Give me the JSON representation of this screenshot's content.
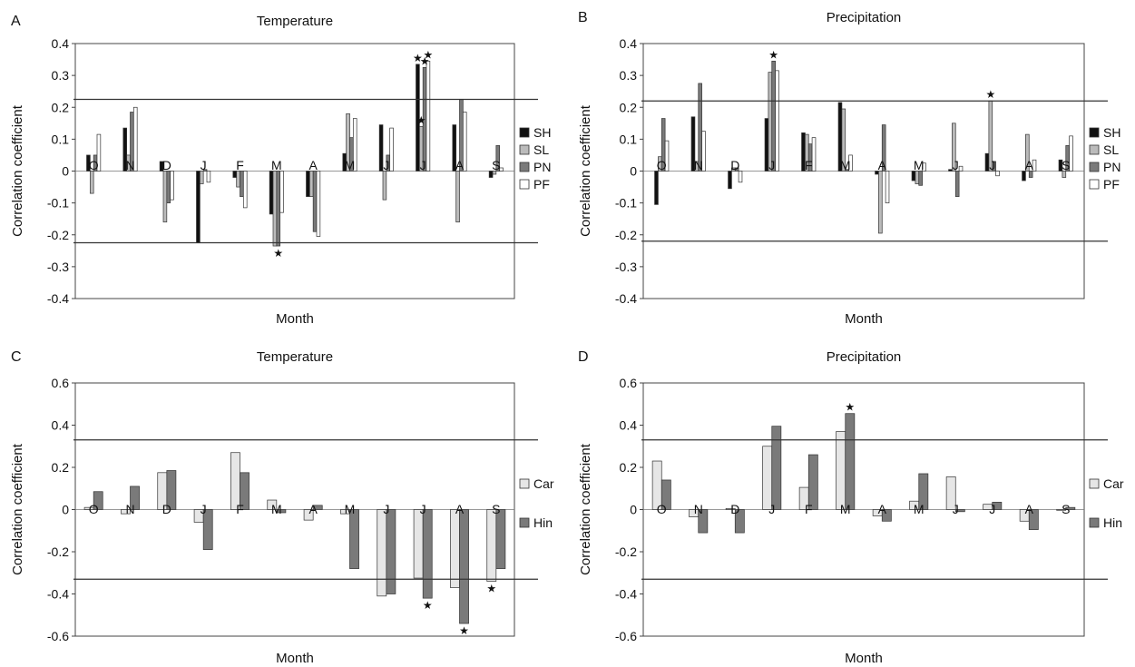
{
  "months": [
    "O",
    "N",
    "D",
    "J",
    "F",
    "M",
    "A",
    "M",
    "J",
    "J",
    "A",
    "S"
  ],
  "colors": {
    "SH": "#111111",
    "SL": "#bbbbbb",
    "PN": "#7a7a7a",
    "PF": "#ffffff",
    "Car": "#e6e6e6",
    "Hin": "#7a7a7a"
  },
  "chart_data": [
    {
      "panel": "A",
      "type": "bar",
      "title": "Temperature",
      "xlabel": "Month",
      "ylabel": "Correlation coefficient",
      "ylim": [
        -0.4,
        0.4
      ],
      "yticks": [
        "-0.4",
        "-0.3",
        "-0.2",
        "-0.1",
        "0",
        "0.1",
        "0.2",
        "0.3",
        "0.4"
      ],
      "threshold": 0.225,
      "categories": [
        "O",
        "N",
        "D",
        "J",
        "F",
        "M",
        "A",
        "M",
        "J",
        "J",
        "A",
        "S"
      ],
      "series": [
        {
          "name": "SH",
          "values": [
            0.05,
            0.135,
            0.03,
            -0.225,
            -0.02,
            -0.135,
            -0.08,
            0.055,
            0.145,
            0.335,
            0.145,
            -0.02
          ]
        },
        {
          "name": "SL",
          "values": [
            -0.07,
            0.05,
            -0.16,
            -0.04,
            -0.05,
            -0.235,
            -0.08,
            0.18,
            -0.09,
            0.14,
            -0.16,
            -0.01
          ]
        },
        {
          "name": "PN",
          "values": [
            0.05,
            0.185,
            -0.1,
            0.005,
            -0.08,
            -0.235,
            -0.19,
            0.105,
            0.05,
            0.325,
            0.225,
            0.08
          ]
        },
        {
          "name": "PF",
          "values": [
            0.115,
            0.2,
            -0.09,
            -0.035,
            -0.115,
            -0.13,
            -0.205,
            0.165,
            0.135,
            0.345,
            0.185,
            0.01
          ]
        }
      ],
      "stars": [
        {
          "category": 9,
          "series": 0
        },
        {
          "category": 9,
          "series": 1
        },
        {
          "category": 9,
          "series": 2
        },
        {
          "category": 9,
          "series": 3
        },
        {
          "category": 5,
          "series": 2
        }
      ]
    },
    {
      "panel": "B",
      "type": "bar",
      "title": "Precipitation",
      "xlabel": "Month",
      "ylabel": "Correlation coefficient",
      "ylim": [
        -0.4,
        0.4
      ],
      "yticks": [
        "-0.4",
        "-0.3",
        "-0.2",
        "-0.1",
        "0",
        "0.1",
        "0.2",
        "0.3",
        "0.4"
      ],
      "threshold": 0.22,
      "categories": [
        "O",
        "N",
        "D",
        "J",
        "F",
        "M",
        "A",
        "M",
        "J",
        "J",
        "A",
        "S"
      ],
      "series": [
        {
          "name": "SH",
          "values": [
            -0.105,
            0.17,
            -0.055,
            0.165,
            0.12,
            0.215,
            -0.01,
            -0.03,
            0.005,
            0.055,
            -0.03,
            0.035
          ]
        },
        {
          "name": "SL",
          "values": [
            0.045,
            0.03,
            0.01,
            0.31,
            0.115,
            0.195,
            -0.195,
            -0.04,
            0.15,
            0.22,
            0.115,
            -0.02
          ]
        },
        {
          "name": "PN",
          "values": [
            0.165,
            0.275,
            0.01,
            0.345,
            0.085,
            0.005,
            0.145,
            -0.045,
            -0.08,
            0.03,
            -0.02,
            0.08
          ]
        },
        {
          "name": "PF",
          "values": [
            0.095,
            0.125,
            -0.035,
            0.315,
            0.105,
            0.05,
            -0.1,
            0.025,
            0.015,
            -0.015,
            0.035,
            0.11
          ]
        }
      ],
      "stars": [
        {
          "category": 3,
          "series": 2
        },
        {
          "category": 9,
          "series": 1
        }
      ]
    },
    {
      "panel": "C",
      "type": "bar",
      "title": "Temperature",
      "xlabel": "Month",
      "ylabel": "Correlation coefficient",
      "ylim": [
        -0.6,
        0.6
      ],
      "yticks": [
        "-0.6",
        "-0.4",
        "-0.2",
        "0",
        "0.2",
        "0.4",
        "0.6"
      ],
      "threshold": 0.33,
      "categories": [
        "O",
        "N",
        "D",
        "J",
        "F",
        "M",
        "A",
        "M",
        "J",
        "J",
        "A",
        "S"
      ],
      "series": [
        {
          "name": "Car",
          "values": [
            0.01,
            -0.02,
            0.175,
            -0.06,
            0.27,
            0.045,
            -0.05,
            -0.02,
            -0.41,
            -0.325,
            -0.37,
            -0.34
          ]
        },
        {
          "name": "Hin",
          "values": [
            0.085,
            0.11,
            0.185,
            -0.19,
            0.175,
            -0.015,
            0.02,
            -0.28,
            -0.4,
            -0.42,
            -0.54,
            -0.28
          ]
        }
      ],
      "stars": [
        {
          "category": 9,
          "series": 1
        },
        {
          "category": 10,
          "series": 1
        },
        {
          "category": 11,
          "series": 0
        }
      ]
    },
    {
      "panel": "D",
      "type": "bar",
      "title": "Precipitation",
      "xlabel": "Month",
      "ylabel": "Correlation coefficient",
      "ylim": [
        -0.6,
        0.6
      ],
      "yticks": [
        "-0.6",
        "-0.4",
        "-0.2",
        "0",
        "0.2",
        "0.4",
        "0.6"
      ],
      "threshold": 0.33,
      "categories": [
        "O",
        "N",
        "D",
        "J",
        "F",
        "M",
        "A",
        "M",
        "J",
        "J",
        "A",
        "S"
      ],
      "series": [
        {
          "name": "Car",
          "values": [
            0.23,
            -0.035,
            0.005,
            0.3,
            0.105,
            0.37,
            -0.03,
            0.04,
            0.155,
            0.025,
            -0.055,
            0.0
          ]
        },
        {
          "name": "Hin",
          "values": [
            0.14,
            -0.11,
            -0.11,
            0.395,
            0.26,
            0.455,
            -0.055,
            0.17,
            -0.01,
            0.035,
            -0.095,
            0.01
          ]
        }
      ],
      "stars": [
        {
          "category": 5,
          "series": 1
        }
      ]
    }
  ]
}
